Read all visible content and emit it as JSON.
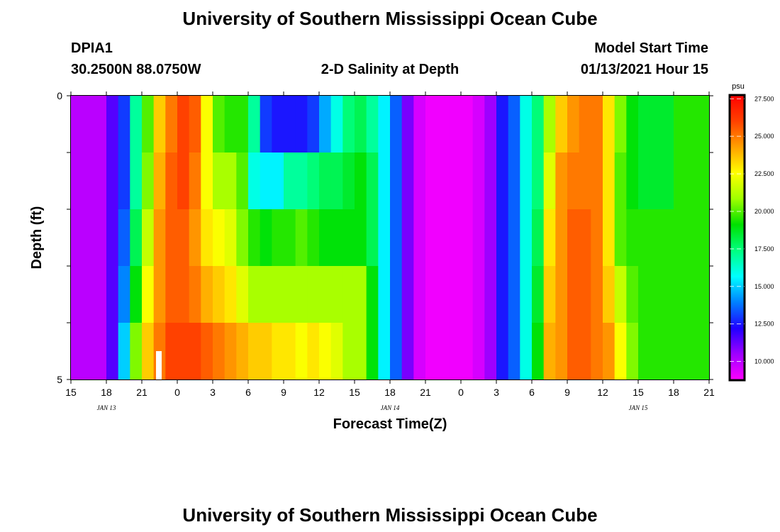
{
  "header": {
    "title": "University of Southern Mississippi Ocean Cube",
    "station": "DPIA1",
    "location": "30.2500N 88.0750W",
    "subtitle": "2-D Salinity at Depth",
    "model_label": "Model Start Time",
    "model_time": "01/13/2021 Hour 15"
  },
  "footer": {
    "title": "University of Southern Mississippi Ocean Cube"
  },
  "chart_data": {
    "type": "heatmap",
    "title": "2-D Salinity at Depth",
    "xlabel": "Forecast Time(Z)",
    "ylabel": "Depth (ft)",
    "x_tick_labels": [
      "15",
      "18",
      "21",
      "0",
      "3",
      "6",
      "9",
      "12",
      "15",
      "18",
      "21",
      "0",
      "3",
      "6",
      "9",
      "12",
      "15",
      "18",
      "21"
    ],
    "date_labels": [
      {
        "label": "JAN 13",
        "hour": 3
      },
      {
        "label": "JAN 14",
        "hour": 27
      },
      {
        "label": "JAN 15",
        "hour": 48
      }
    ],
    "x_range_hours": [
      0,
      54
    ],
    "y_tick_labels": [
      "0",
      "5"
    ],
    "ylim": [
      0,
      5
    ],
    "depth_levels": 5,
    "colorbar": {
      "unit": "psu",
      "min": 8.75,
      "max": 27.75,
      "ticks": [
        "27.500",
        "25.000",
        "22.500",
        "20.000",
        "17.500",
        "15.000",
        "12.500",
        "10.000"
      ],
      "colors": [
        "#ff00ff",
        "#a000ff",
        "#2000ff",
        "#0080ff",
        "#00ffff",
        "#00ff80",
        "#00e000",
        "#a0ff00",
        "#ffff00",
        "#ffa000",
        "#ff4000",
        "#ff0000"
      ]
    },
    "column_hours": [
      0,
      1,
      2,
      3,
      4,
      5,
      6,
      7,
      8,
      9,
      10,
      11,
      12,
      13,
      14,
      15,
      16,
      17,
      18,
      19,
      20,
      21,
      22,
      23,
      24,
      25,
      26,
      27,
      28,
      29,
      30,
      31,
      32,
      33,
      34,
      35,
      36,
      37,
      38,
      39,
      40,
      41,
      42,
      43,
      44,
      45,
      46,
      47,
      48,
      49,
      50,
      51,
      52,
      53
    ],
    "salinity_by_depth": [
      [
        10.0,
        10.0,
        10.0,
        11.5,
        13.0,
        17.0,
        20.0,
        23.5,
        25.0,
        26.0,
        25.5,
        22.5,
        20.0,
        19.5,
        19.5,
        17.0,
        13.0,
        12.5,
        12.5,
        12.5,
        13.0,
        14.5,
        16.0,
        17.5,
        18.0,
        17.0,
        15.5,
        13.5,
        11.0,
        9.5,
        9.0,
        9.0,
        9.0,
        9.0,
        9.5,
        10.5,
        12.5,
        13.5,
        16.0,
        17.5,
        21.0,
        23.5,
        24.5,
        25.0,
        25.0,
        23.0,
        20.5,
        19.0,
        18.5,
        18.5,
        18.5,
        19.5,
        19.5,
        19.5
      ],
      [
        10.0,
        10.0,
        10.0,
        11.5,
        13.0,
        17.0,
        20.5,
        24.0,
        25.5,
        26.0,
        25.0,
        22.5,
        21.0,
        21.0,
        20.0,
        16.0,
        15.5,
        15.5,
        17.0,
        17.0,
        17.5,
        18.0,
        18.0,
        18.5,
        19.0,
        18.0,
        15.5,
        13.5,
        11.0,
        9.5,
        9.0,
        9.0,
        9.0,
        9.0,
        9.5,
        10.5,
        12.5,
        13.5,
        16.0,
        17.5,
        22.0,
        24.5,
        25.0,
        25.0,
        25.0,
        23.0,
        20.0,
        19.0,
        18.5,
        18.5,
        18.5,
        19.5,
        19.5,
        19.5
      ],
      [
        10.0,
        10.0,
        10.0,
        11.5,
        13.5,
        18.0,
        21.5,
        24.5,
        25.5,
        25.5,
        24.5,
        23.0,
        22.5,
        22.0,
        20.5,
        19.5,
        19.0,
        19.5,
        19.5,
        20.0,
        19.5,
        19.0,
        19.0,
        19.0,
        19.0,
        18.0,
        15.5,
        13.5,
        11.0,
        9.5,
        9.0,
        9.0,
        9.0,
        9.0,
        9.5,
        10.5,
        12.5,
        13.5,
        16.0,
        18.0,
        23.0,
        24.5,
        25.5,
        25.5,
        25.0,
        23.0,
        20.0,
        19.5,
        19.5,
        19.5,
        19.5,
        19.5,
        19.5,
        19.5
      ],
      [
        10.0,
        10.0,
        10.0,
        11.5,
        14.0,
        19.0,
        22.5,
        24.5,
        25.5,
        25.5,
        25.0,
        24.0,
        23.5,
        23.0,
        22.0,
        21.0,
        21.0,
        21.0,
        21.0,
        21.0,
        21.0,
        21.0,
        21.0,
        21.0,
        21.0,
        19.0,
        15.5,
        13.5,
        11.0,
        9.5,
        9.0,
        9.0,
        9.0,
        9.0,
        9.5,
        10.5,
        12.5,
        13.5,
        16.0,
        18.5,
        23.5,
        24.5,
        25.5,
        25.5,
        25.0,
        23.5,
        21.5,
        20.0,
        19.5,
        19.5,
        19.5,
        19.5,
        19.5,
        19.5
      ],
      [
        10.0,
        10.0,
        10.0,
        11.5,
        15.0,
        20.5,
        23.5,
        25.0,
        26.0,
        26.0,
        26.0,
        25.5,
        25.0,
        24.5,
        24.0,
        23.5,
        23.5,
        23.0,
        23.0,
        22.5,
        23.0,
        22.5,
        22.0,
        21.0,
        21.0,
        19.0,
        15.5,
        13.5,
        11.0,
        9.5,
        9.0,
        9.0,
        9.0,
        9.0,
        9.5,
        10.5,
        12.5,
        13.5,
        16.0,
        19.0,
        24.0,
        24.5,
        25.5,
        25.5,
        25.0,
        24.5,
        22.5,
        20.5,
        19.5,
        19.5,
        19.5,
        19.5,
        19.5,
        19.5
      ]
    ]
  }
}
